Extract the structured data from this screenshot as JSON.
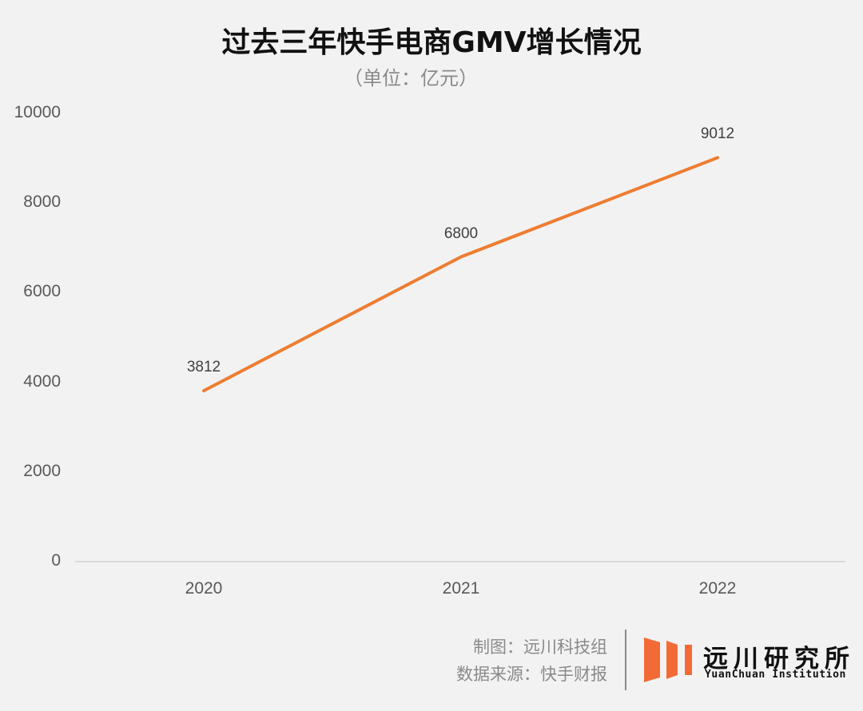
{
  "header": {
    "title": "过去三年快手电商GMV增长情况",
    "subtitle": "（单位：亿元）"
  },
  "chart_data": {
    "type": "line",
    "title": "过去三年快手电商GMV增长情况",
    "subtitle": "（单位：亿元）",
    "xlabel": "",
    "ylabel": "",
    "categories": [
      "2020",
      "2021",
      "2022"
    ],
    "series": [
      {
        "name": "快手电商GMV",
        "values": [
          3812,
          6800,
          9012
        ],
        "color": "#ed7d31"
      }
    ],
    "data_labels": [
      "3812",
      "6800",
      "9012"
    ],
    "y_ticks": [
      "10000",
      "8000",
      "6000",
      "4000",
      "2000",
      "0"
    ],
    "ylim": [
      0,
      10000
    ],
    "grid": false,
    "legend": "none"
  },
  "footer": {
    "credit_line1": "制图：远川科技组",
    "credit_line2": "数据来源：快手财报",
    "logo_cn": "远川研究所",
    "logo_en": "YuanChuan Institution",
    "logo_color": "#f26b36"
  }
}
